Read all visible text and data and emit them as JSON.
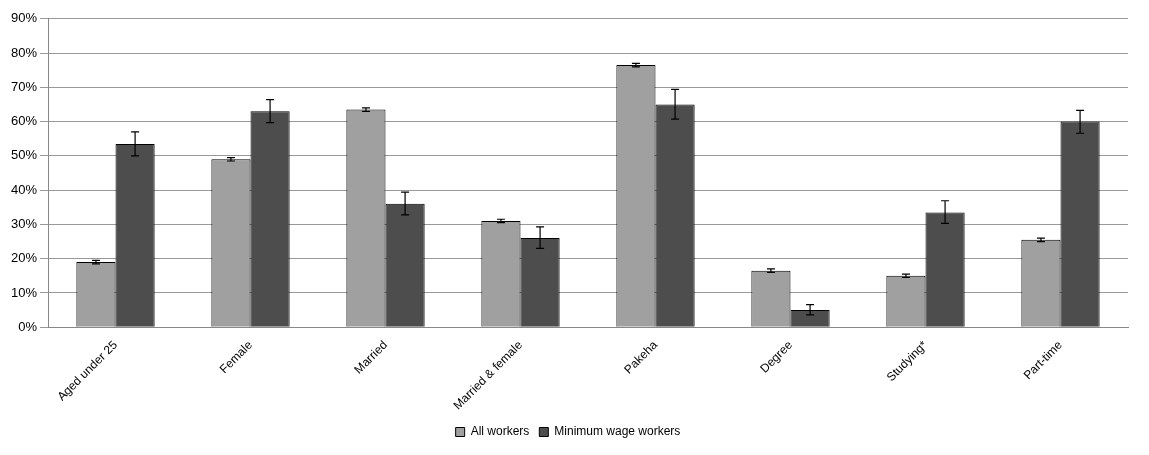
{
  "chart_data": {
    "type": "bar",
    "categories": [
      "Aged under 25",
      "Female",
      "Married",
      "Married & female",
      "Pakeha",
      "Degree",
      "Studying*",
      "Part-time"
    ],
    "series": [
      {
        "name": "All workers",
        "color": "#a0a0a0",
        "values": [
          19,
          49,
          63.5,
          31,
          76.5,
          16.5,
          15,
          25.5
        ],
        "errors": [
          0.5,
          0.5,
          0.5,
          0.5,
          0.5,
          0.5,
          0.5,
          0.5
        ]
      },
      {
        "name": "Minimum wage workers",
        "color": "#4d4d4d",
        "values": [
          53.5,
          63,
          36,
          26,
          65,
          5,
          33.5,
          60
        ],
        "errors": [
          [
            50,
            57
          ],
          [
            59.7,
            66.4
          ],
          [
            32.8,
            39.4
          ],
          [
            23,
            29.3
          ],
          [
            60.7,
            69.4
          ],
          [
            3.6,
            6.6
          ],
          [
            30.3,
            36.9
          ],
          [
            56.6,
            63.3
          ]
        ]
      }
    ],
    "ylim": [
      0,
      90
    ],
    "yticks": [
      {
        "value": 0,
        "label": "0%"
      },
      {
        "value": 10,
        "label": "10%"
      },
      {
        "value": 20,
        "label": "20%"
      },
      {
        "value": 30,
        "label": "30%"
      },
      {
        "value": 40,
        "label": "40%"
      },
      {
        "value": 50,
        "label": "50%"
      },
      {
        "value": 60,
        "label": "60%"
      },
      {
        "value": 70,
        "label": "70%"
      },
      {
        "value": 80,
        "label": "80%"
      },
      {
        "value": 90,
        "label": "90%"
      }
    ],
    "grid": "y",
    "legend": "bottom"
  }
}
